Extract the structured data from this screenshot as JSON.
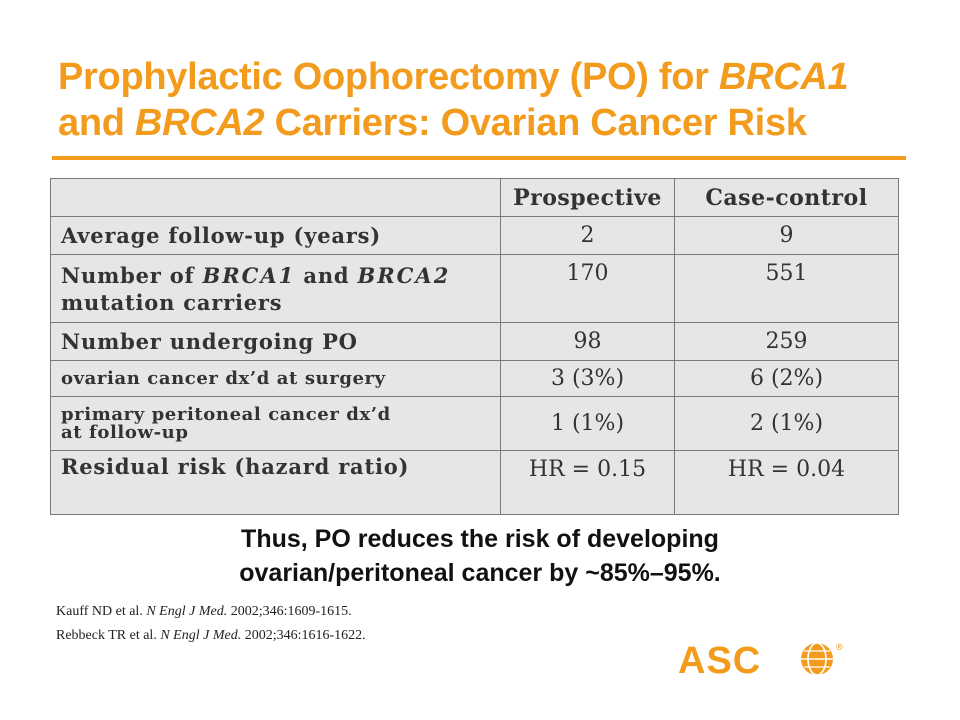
{
  "slide": {
    "title_line1": "Prophylactic Oophorectomy (PO) for ",
    "title_line1_italic": "BRCA1",
    "title_line2_pre": "and ",
    "title_line2_italic": "BRCA2",
    "title_line2_post": " Carriers: Ovarian Cancer Risk",
    "accent_color": "#f29b1d"
  },
  "table": {
    "headers": [
      "",
      "Prospective",
      "Case-control"
    ],
    "rows": [
      {
        "label": "Average  follow-up  (years)",
        "prospective": "2",
        "case_control": "9"
      },
      {
        "label_a": "Number of ",
        "label_it1": "BRCA1",
        "label_b": " and ",
        "label_it2": "BRCA2",
        "label_c": "mutation  carriers",
        "prospective": "170",
        "case_control": "551"
      },
      {
        "label": "Number  undergoing  PO",
        "prospective": "98",
        "case_control": "259"
      },
      {
        "label": "ovarian  cancer  dx’d  at  surgery",
        "prospective": "3 (3%)",
        "case_control": "6 (2%)"
      },
      {
        "label_line1": "primary  peritoneal  cancer  dx’d",
        "label_line2": "at  follow-up",
        "prospective": "1 (1%)",
        "case_control": "2 (1%)"
      },
      {
        "label": "Residual  risk  (hazard  ratio)",
        "prospective": "HR = 0.15",
        "case_control": "HR = 0.04"
      }
    ]
  },
  "conclusion": {
    "line1": "Thus, PO reduces the risk of developing",
    "line2": "ovarian/peritoneal cancer by ~85%–95%."
  },
  "references": [
    {
      "authors": "Kauff ND et al.  ",
      "journal": "N Engl J Med.",
      "detail": " 2002;346:1609-1615."
    },
    {
      "authors": "Rebbeck TR et al.  ",
      "journal": "N Engl J Med.",
      "detail": " 2002;346:1616-1622."
    }
  ],
  "logo": {
    "text": "ASCO",
    "mark": "®"
  }
}
